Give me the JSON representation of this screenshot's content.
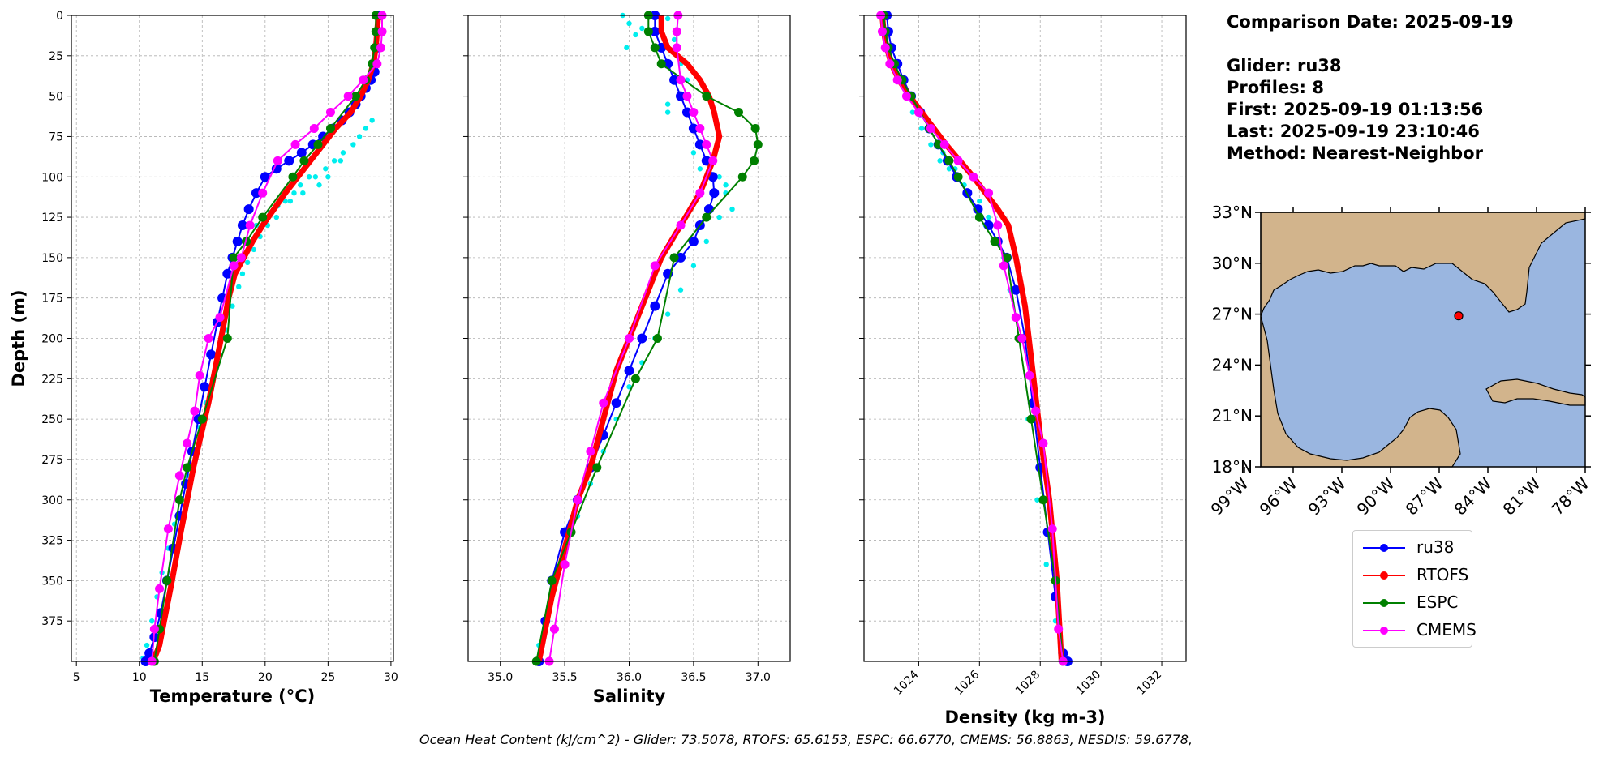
{
  "info": {
    "comparison_date": "Comparison Date: 2025-09-19",
    "glider": "Glider: ru38",
    "profiles": "Profiles: 8",
    "first": "First: 2025-09-19 01:13:56",
    "last": "Last: 2025-09-19 23:10:46",
    "method": "Method: Nearest-Neighbor"
  },
  "caption": "Ocean Heat Content (kJ/cm^2) - Glider: 73.5078,  RTOFS: 65.6153,  ESPC: 66.6770,  CMEMS: 56.8863,  NESDIS: 59.6778,",
  "legend": [
    {
      "name": "ru38",
      "color": "#0000ff"
    },
    {
      "name": "RTOFS",
      "color": "#ff0000"
    },
    {
      "name": "ESPC",
      "color": "#008000"
    },
    {
      "name": "CMEMS",
      "color": "#ff00ff"
    }
  ],
  "map": {
    "ocean_color": "#9ab6e0",
    "land_color": "#d2b48c",
    "lat_labels": [
      "33°N",
      "30°N",
      "27°N",
      "24°N",
      "21°N",
      "18°N"
    ],
    "lon_labels": [
      "99°W",
      "96°W",
      "93°W",
      "90°W",
      "87°W",
      "84°W",
      "81°W",
      "78°W"
    ],
    "extent": {
      "lon": [
        -98,
        -78
      ],
      "lat": [
        18,
        33
      ]
    },
    "glider_location": {
      "lon": -85.8,
      "lat": 26.9,
      "color": "#ff0000"
    }
  },
  "chart_data": [
    {
      "type": "line",
      "xlabel": "Temperature (°C)",
      "ylabel": "Depth (m)",
      "xlim": [
        4.6,
        30.2
      ],
      "ylim": [
        400,
        0
      ],
      "xticks": [
        5,
        10,
        15,
        20,
        25,
        30
      ],
      "yticks": [
        0,
        25,
        50,
        75,
        100,
        125,
        150,
        175,
        200,
        225,
        250,
        275,
        300,
        325,
        350,
        375
      ],
      "grid": true,
      "glider_points": [
        [
          27.0,
          80
        ],
        [
          26.2,
          85
        ],
        [
          25.5,
          90
        ],
        [
          24.8,
          95
        ],
        [
          24.0,
          100
        ],
        [
          23.5,
          100
        ],
        [
          22.8,
          105
        ],
        [
          22.3,
          110
        ],
        [
          21.6,
          115
        ],
        [
          21.0,
          118
        ],
        [
          20.4,
          122
        ],
        [
          19.8,
          125
        ],
        [
          19.3,
          130
        ],
        [
          26.0,
          90
        ],
        [
          25.0,
          100
        ],
        [
          24.3,
          105
        ],
        [
          28.0,
          70
        ],
        [
          28.5,
          65
        ],
        [
          27.5,
          75
        ],
        [
          23.0,
          110
        ],
        [
          22.0,
          115
        ],
        [
          20.9,
          125
        ],
        [
          20.2,
          130
        ],
        [
          19.6,
          137
        ],
        [
          19.1,
          145
        ],
        [
          18.6,
          153
        ],
        [
          18.2,
          160
        ],
        [
          17.9,
          168
        ],
        [
          17.4,
          180
        ],
        [
          16.9,
          195
        ],
        [
          16.4,
          210
        ],
        [
          15.8,
          225
        ],
        [
          15.3,
          240
        ],
        [
          14.8,
          255
        ],
        [
          14.3,
          270
        ],
        [
          13.8,
          285
        ],
        [
          13.3,
          300
        ],
        [
          12.8,
          315
        ],
        [
          12.3,
          330
        ],
        [
          11.8,
          345
        ],
        [
          11.4,
          360
        ],
        [
          11.0,
          375
        ],
        [
          10.6,
          390
        ],
        [
          10.3,
          398
        ]
      ],
      "series": [
        {
          "name": "ru38",
          "color": "#0000ff",
          "x": [
            29.1,
            29.0,
            28.9,
            28.8,
            28.7,
            28.4,
            28.0,
            27.6,
            27.2,
            26.7,
            26.1,
            25.4,
            24.6,
            23.8,
            22.9,
            21.9,
            20.9,
            20.0,
            19.3,
            18.7,
            18.2,
            17.8,
            17.4,
            17.0,
            16.6,
            16.2,
            15.7,
            15.2,
            14.7,
            14.2,
            13.7,
            13.2,
            12.7,
            12.2,
            11.7,
            11.2,
            10.8,
            10.5
          ],
          "y": [
            0,
            10,
            20,
            30,
            35,
            40,
            45,
            50,
            55,
            60,
            65,
            70,
            75,
            80,
            85,
            90,
            95,
            100,
            110,
            120,
            130,
            140,
            150,
            160,
            175,
            190,
            210,
            230,
            250,
            270,
            290,
            310,
            330,
            350,
            370,
            385,
            395,
            400
          ]
        },
        {
          "name": "RTOFS",
          "color": "#ff0000",
          "x": [
            29.0,
            28.9,
            28.8,
            28.6,
            28.2,
            27.6,
            26.8,
            25.6,
            24.6,
            23.6,
            22.6,
            21.6,
            20.7,
            19.8,
            19.0,
            18.3,
            17.6,
            17.1,
            16.5,
            16.0,
            15.5,
            14.9,
            14.3,
            13.8,
            13.3,
            12.6,
            12.1,
            11.6,
            11.2,
            11.0
          ],
          "y": [
            0,
            10,
            20,
            30,
            40,
            50,
            60,
            70,
            80,
            90,
            100,
            110,
            120,
            130,
            140,
            150,
            160,
            175,
            200,
            220,
            240,
            260,
            280,
            300,
            320,
            350,
            370,
            390,
            398,
            400
          ]
        },
        {
          "name": "ESPC",
          "color": "#008000",
          "x": [
            28.8,
            28.8,
            28.7,
            28.5,
            28.0,
            27.2,
            25.2,
            24.2,
            23.1,
            22.2,
            19.8,
            18.5,
            17.5,
            17.0,
            15.0,
            13.8,
            13.2,
            12.2,
            11.6,
            11.2
          ],
          "y": [
            0,
            10,
            20,
            30,
            40,
            50,
            70,
            80,
            90,
            100,
            125,
            140,
            150,
            200,
            250,
            280,
            300,
            350,
            380,
            400
          ]
        },
        {
          "name": "CMEMS",
          "color": "#ff00ff",
          "x": [
            29.3,
            29.3,
            29.2,
            28.9,
            27.8,
            26.6,
            25.2,
            23.9,
            22.4,
            21.0,
            19.8,
            18.8,
            18.1,
            17.5,
            16.4,
            15.5,
            14.8,
            14.4,
            13.8,
            13.2,
            12.3,
            11.6,
            11.2,
            11.0
          ],
          "y": [
            0,
            10,
            20,
            30,
            40,
            50,
            60,
            70,
            80,
            90,
            110,
            130,
            150,
            155,
            187,
            200,
            223,
            245,
            265,
            285,
            318,
            355,
            380,
            400
          ]
        }
      ]
    },
    {
      "type": "line",
      "xlabel": "Salinity",
      "ylabel": "",
      "xlim": [
        34.75,
        37.25
      ],
      "ylim": [
        400,
        0
      ],
      "xticks": [
        35.0,
        35.5,
        36.0,
        36.5,
        37.0
      ],
      "grid": true,
      "glider_points": [
        [
          35.95,
          0
        ],
        [
          36.0,
          5
        ],
        [
          36.05,
          12
        ],
        [
          35.98,
          20
        ],
        [
          36.1,
          8
        ],
        [
          36.3,
          2
        ],
        [
          36.35,
          15
        ],
        [
          36.4,
          30
        ],
        [
          36.45,
          40
        ],
        [
          36.3,
          55
        ],
        [
          36.3,
          60
        ],
        [
          36.5,
          70
        ],
        [
          36.55,
          80
        ],
        [
          36.5,
          85
        ],
        [
          36.55,
          95
        ],
        [
          36.7,
          100
        ],
        [
          36.75,
          110
        ],
        [
          36.8,
          120
        ],
        [
          36.75,
          105
        ],
        [
          36.7,
          125
        ],
        [
          36.6,
          140
        ],
        [
          36.5,
          155
        ],
        [
          36.4,
          170
        ],
        [
          36.3,
          185
        ],
        [
          36.2,
          200
        ],
        [
          36.1,
          215
        ],
        [
          36.0,
          230
        ],
        [
          35.9,
          250
        ],
        [
          35.8,
          270
        ],
        [
          35.7,
          290
        ],
        [
          35.6,
          310
        ],
        [
          35.5,
          330
        ],
        [
          35.45,
          345
        ],
        [
          35.4,
          360
        ],
        [
          35.35,
          375
        ],
        [
          35.3,
          390
        ],
        [
          35.28,
          400
        ]
      ],
      "series": [
        {
          "name": "ru38",
          "color": "#0000ff",
          "x": [
            36.2,
            36.2,
            36.25,
            36.3,
            36.35,
            36.4,
            36.45,
            36.5,
            36.55,
            36.6,
            36.65,
            36.66,
            36.62,
            36.55,
            36.5,
            36.4,
            36.3,
            36.2,
            36.1,
            36.0,
            35.9,
            35.8,
            35.7,
            35.6,
            35.5,
            35.4,
            35.35,
            35.3
          ],
          "y": [
            0,
            10,
            20,
            30,
            40,
            50,
            60,
            70,
            80,
            90,
            100,
            110,
            120,
            130,
            140,
            150,
            160,
            180,
            200,
            220,
            240,
            260,
            280,
            300,
            320,
            350,
            375,
            400
          ]
        },
        {
          "name": "RTOFS",
          "color": "#ff0000",
          "x": [
            36.25,
            36.25,
            36.3,
            36.45,
            36.55,
            36.62,
            36.66,
            36.7,
            36.65,
            36.6,
            36.55,
            36.4,
            36.25,
            36.1,
            36.0,
            35.9,
            35.8,
            35.7,
            35.6,
            35.5,
            35.4,
            35.3
          ],
          "y": [
            0,
            10,
            20,
            30,
            40,
            50,
            60,
            75,
            90,
            100,
            110,
            130,
            150,
            180,
            200,
            220,
            250,
            280,
            300,
            330,
            360,
            400
          ]
        },
        {
          "name": "ESPC",
          "color": "#008000",
          "x": [
            36.15,
            36.15,
            36.2,
            36.25,
            36.6,
            36.85,
            36.98,
            37.0,
            36.97,
            36.88,
            36.6,
            36.35,
            36.22,
            36.05,
            35.75,
            35.55,
            35.4,
            35.28
          ],
          "y": [
            0,
            10,
            20,
            30,
            50,
            60,
            70,
            80,
            90,
            100,
            125,
            150,
            200,
            225,
            280,
            320,
            350,
            400
          ]
        },
        {
          "name": "CMEMS",
          "color": "#ff00ff",
          "x": [
            36.38,
            36.37,
            36.37,
            36.4,
            36.45,
            36.5,
            36.55,
            36.6,
            36.65,
            36.55,
            36.4,
            36.2,
            36.0,
            35.8,
            35.7,
            35.6,
            35.5,
            35.42,
            35.38
          ],
          "y": [
            0,
            10,
            20,
            40,
            50,
            60,
            70,
            80,
            90,
            110,
            130,
            155,
            200,
            240,
            270,
            300,
            340,
            380,
            400
          ]
        }
      ]
    },
    {
      "type": "line",
      "xlabel": "Density (kg m-3)",
      "ylabel": "",
      "xlim": [
        1022.2,
        1032.8
      ],
      "ylim": [
        400,
        0
      ],
      "xticks": [
        1024,
        1026,
        1028,
        1030,
        1032
      ],
      "grid": true,
      "glider_points": [
        [
          1022.9,
          0
        ],
        [
          1023.0,
          10
        ],
        [
          1023.1,
          20
        ],
        [
          1023.2,
          30
        ],
        [
          1023.4,
          40
        ],
        [
          1023.6,
          50
        ],
        [
          1023.8,
          60
        ],
        [
          1024.1,
          70
        ],
        [
          1024.4,
          80
        ],
        [
          1024.7,
          90
        ],
        [
          1025.0,
          95
        ],
        [
          1025.3,
          100
        ],
        [
          1025.6,
          110
        ],
        [
          1025.9,
          120
        ],
        [
          1026.2,
          130
        ],
        [
          1026.5,
          140
        ],
        [
          1026.8,
          150
        ],
        [
          1024.3,
          70
        ],
        [
          1024.8,
          85
        ],
        [
          1025.2,
          95
        ],
        [
          1025.5,
          105
        ],
        [
          1026.0,
          115
        ],
        [
          1026.3,
          125
        ],
        [
          1027.0,
          170
        ],
        [
          1027.3,
          200
        ],
        [
          1027.6,
          250
        ],
        [
          1027.9,
          300
        ],
        [
          1028.2,
          340
        ],
        [
          1028.5,
          375
        ],
        [
          1028.7,
          400
        ]
      ],
      "series": [
        {
          "name": "ru38",
          "color": "#0000ff",
          "x": [
            1022.95,
            1023.0,
            1023.1,
            1023.3,
            1023.5,
            1023.75,
            1024.05,
            1024.35,
            1024.65,
            1024.95,
            1025.25,
            1025.6,
            1025.95,
            1026.3,
            1026.6,
            1026.9,
            1027.2,
            1027.5,
            1027.75,
            1028.0,
            1028.25,
            1028.5,
            1028.75,
            1028.9
          ],
          "y": [
            0,
            10,
            20,
            30,
            40,
            50,
            60,
            70,
            80,
            90,
            100,
            110,
            120,
            130,
            140,
            150,
            170,
            200,
            240,
            280,
            320,
            360,
            395,
            400
          ]
        },
        {
          "name": "RTOFS",
          "color": "#ff0000",
          "x": [
            1022.8,
            1022.85,
            1022.95,
            1023.1,
            1023.35,
            1023.7,
            1024.1,
            1024.5,
            1024.9,
            1025.35,
            1025.8,
            1026.2,
            1026.6,
            1026.95,
            1027.2,
            1027.5,
            1027.75,
            1028.0,
            1028.3,
            1028.55,
            1028.7
          ],
          "y": [
            0,
            10,
            20,
            30,
            40,
            50,
            60,
            70,
            80,
            90,
            100,
            110,
            120,
            130,
            150,
            180,
            220,
            260,
            300,
            350,
            400
          ]
        },
        {
          "name": "ESPC",
          "color": "#008000",
          "x": [
            1022.85,
            1022.9,
            1023.0,
            1023.2,
            1023.45,
            1023.75,
            1024.35,
            1024.65,
            1025.0,
            1025.3,
            1026.0,
            1026.5,
            1026.9,
            1027.3,
            1027.7,
            1028.1,
            1028.5,
            1028.75
          ],
          "y": [
            0,
            10,
            20,
            30,
            40,
            50,
            70,
            80,
            90,
            100,
            125,
            140,
            150,
            200,
            250,
            300,
            350,
            400
          ]
        },
        {
          "name": "CMEMS",
          "color": "#ff00ff",
          "x": [
            1022.75,
            1022.8,
            1022.9,
            1023.05,
            1023.3,
            1023.6,
            1024.0,
            1024.4,
            1024.85,
            1025.3,
            1025.8,
            1026.3,
            1026.6,
            1026.8,
            1027.2,
            1027.4,
            1027.65,
            1027.85,
            1028.1,
            1028.4,
            1028.6,
            1028.75
          ],
          "y": [
            0,
            10,
            20,
            30,
            40,
            50,
            60,
            70,
            80,
            90,
            100,
            110,
            130,
            155,
            187,
            200,
            223,
            245,
            265,
            318,
            380,
            400
          ]
        }
      ]
    }
  ]
}
